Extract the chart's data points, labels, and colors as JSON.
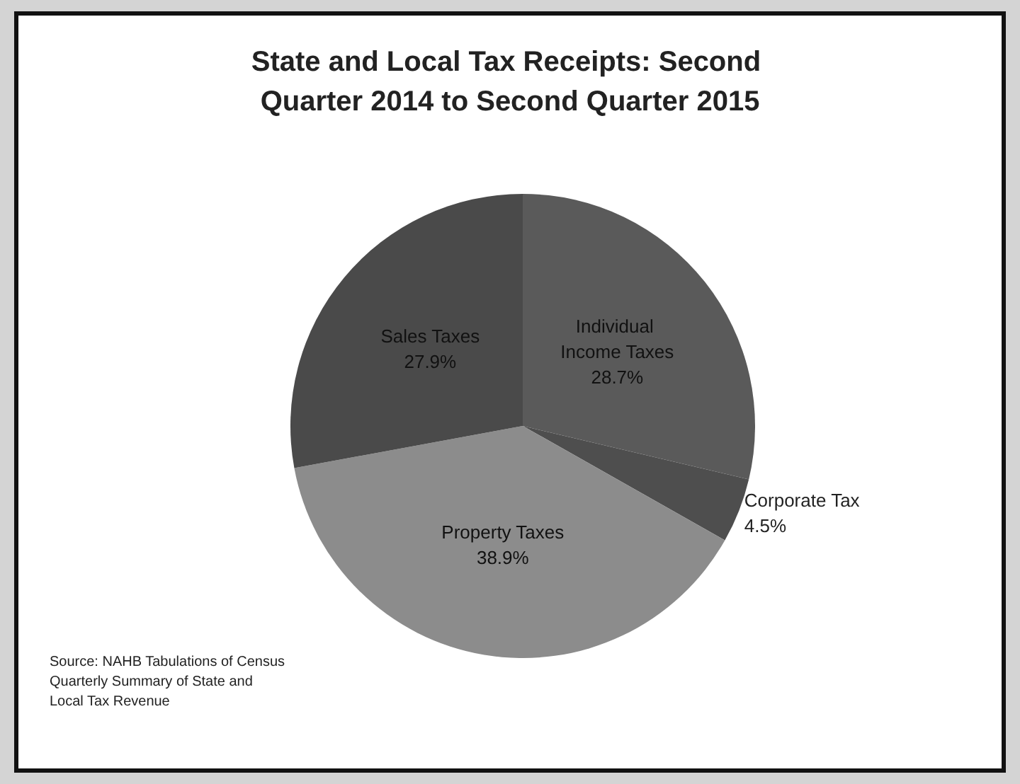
{
  "chart_data": {
    "type": "pie",
    "title": "State and Local Tax Receipts: Second Quarter 2014 to Second Quarter 2015",
    "categories": [
      "Individual Income Taxes",
      "Corporate Tax",
      "Property Taxes",
      "Sales Taxes"
    ],
    "values": [
      28.7,
      4.5,
      38.9,
      27.9
    ],
    "value_labels": [
      "28.7%",
      "4.5%",
      "38.9%",
      "27.9%"
    ],
    "colors": [
      "#5a5a5a",
      "#4e4e4e",
      "#8c8c8c",
      "#4a4a4a"
    ],
    "legend": false,
    "annotations": [
      "Source: NAHB Tabulations of Census Quarterly Summary of State and Local Tax Revenue"
    ]
  }
}
